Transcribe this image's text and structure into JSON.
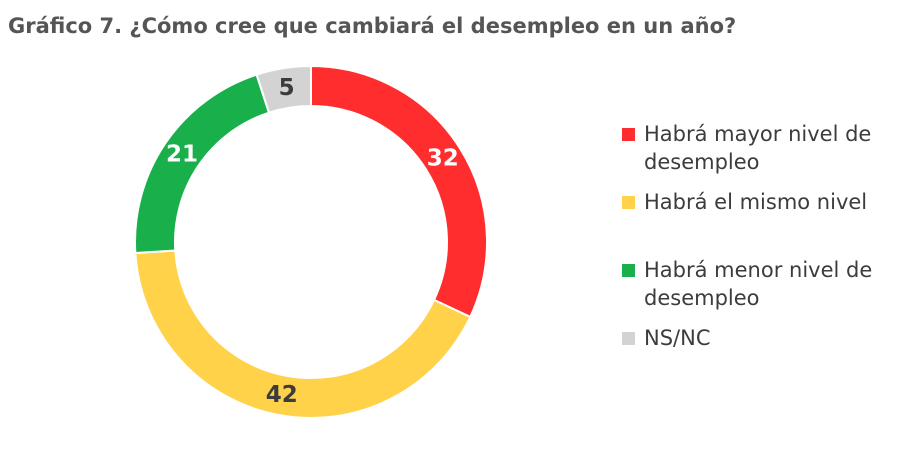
{
  "chart_data": {
    "type": "pie",
    "title": "Gráfico  7. ¿Cómo cree que cambiará el desempleo en un año?",
    "categories": [
      "Habrá mayor nivel de desempleo",
      "Habrá el mismo nivel",
      "Habrá menor nivel de desempleo",
      "NS/NC"
    ],
    "values": [
      32,
      42,
      21,
      5
    ],
    "colors": [
      "#ff2d2d",
      "#ffd24a",
      "#19b04b",
      "#d3d3d3"
    ],
    "label_colors": [
      "#ffffff",
      "#3c3c3c",
      "#ffffff",
      "#3c3c3c"
    ],
    "donut": true,
    "legend_position": "right"
  }
}
